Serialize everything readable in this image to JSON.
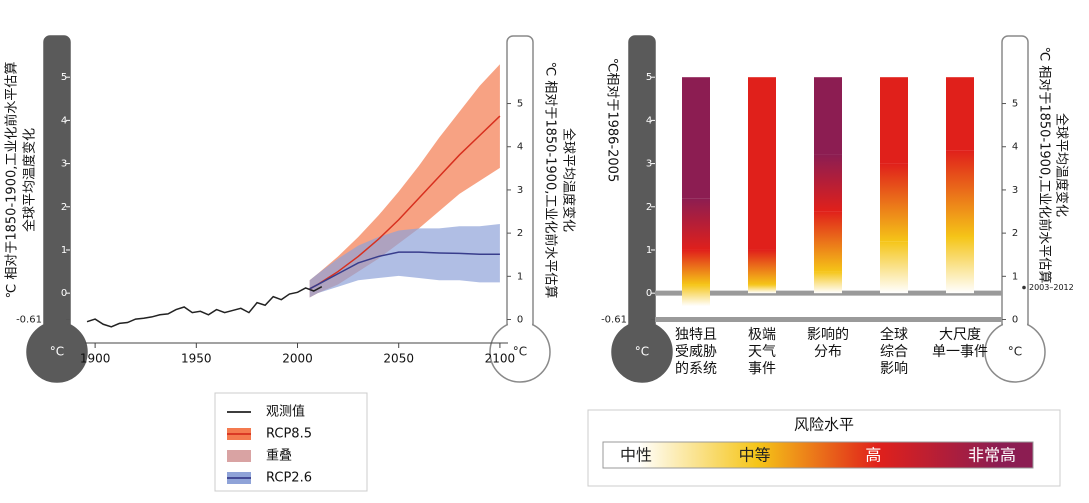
{
  "chart_data": [
    {
      "type": "line",
      "unit": "°C",
      "y_title": [
        "℃ 相对于1850-1900,工业化前水平估算",
        "全球平均温度变化"
      ],
      "y2_title": [
        "℃ 相对于1850-1900,工业化前水平估算",
        "全球平均温度变化"
      ],
      "xlim": [
        1895,
        2104
      ],
      "xticks": [
        1900,
        1950,
        2000,
        2050,
        2100
      ],
      "ylim": [
        -1.2,
        6.0
      ],
      "yticks": [
        -0.61,
        0,
        1,
        2,
        3,
        4,
        5
      ],
      "y2lim": [
        -0.59,
        6.61
      ],
      "y2ticks": [
        0,
        1,
        2,
        3,
        4,
        5
      ],
      "series": [
        {
          "name": "观测值",
          "color": "#222222",
          "x": [
            1896,
            1900,
            1904,
            1908,
            1912,
            1916,
            1920,
            1924,
            1928,
            1932,
            1936,
            1940,
            1944,
            1948,
            1952,
            1956,
            1960,
            1964,
            1968,
            1972,
            1976,
            1980,
            1984,
            1988,
            1992,
            1996,
            2000,
            2004,
            2008,
            2012
          ],
          "values": [
            -0.66,
            -0.6,
            -0.72,
            -0.78,
            -0.7,
            -0.68,
            -0.6,
            -0.58,
            -0.55,
            -0.5,
            -0.48,
            -0.38,
            -0.32,
            -0.45,
            -0.42,
            -0.5,
            -0.38,
            -0.45,
            -0.4,
            -0.35,
            -0.45,
            -0.22,
            -0.28,
            -0.08,
            -0.15,
            -0.02,
            0.02,
            0.12,
            0.05,
            0.15
          ]
        },
        {
          "name": "RCP8.5",
          "color": "#d7301f",
          "band_color": "#f47a4f",
          "x": [
            2006,
            2010,
            2020,
            2030,
            2040,
            2050,
            2060,
            2070,
            2080,
            2090,
            2100
          ],
          "values": [
            0.1,
            0.2,
            0.5,
            0.85,
            1.25,
            1.7,
            2.2,
            2.7,
            3.2,
            3.65,
            4.1
          ],
          "low": [
            -0.1,
            0.0,
            0.2,
            0.5,
            0.8,
            1.15,
            1.5,
            1.9,
            2.3,
            2.6,
            2.9
          ],
          "high": [
            0.3,
            0.45,
            0.85,
            1.3,
            1.8,
            2.35,
            2.95,
            3.6,
            4.2,
            4.8,
            5.3
          ]
        },
        {
          "name": "RCP2.6",
          "color": "#383d8c",
          "band_color": "#8fa3d8",
          "x": [
            2006,
            2010,
            2020,
            2030,
            2040,
            2050,
            2060,
            2070,
            2080,
            2090,
            2100
          ],
          "values": [
            0.1,
            0.2,
            0.45,
            0.7,
            0.85,
            0.95,
            0.95,
            0.93,
            0.92,
            0.9,
            0.9
          ],
          "low": [
            -0.1,
            0.0,
            0.15,
            0.3,
            0.35,
            0.4,
            0.35,
            0.3,
            0.3,
            0.25,
            0.25
          ],
          "high": [
            0.3,
            0.45,
            0.8,
            1.1,
            1.3,
            1.45,
            1.5,
            1.5,
            1.55,
            1.55,
            1.6
          ]
        }
      ],
      "overlap": {
        "name": "重叠",
        "color": "#d9a3a3"
      }
    },
    {
      "type": "risk-bar",
      "unit": "°C",
      "y_title": "℃相对于1986-2005",
      "y2_title": [
        "℃ 相对于1850-1900,工业化前水平估算",
        "全球平均温度变化"
      ],
      "ylim": [
        -1.2,
        6.0
      ],
      "yticks": [
        -0.61,
        0,
        1,
        2,
        3,
        4,
        5
      ],
      "y2lim": [
        -0.59,
        6.61
      ],
      "y2ticks": [
        0,
        1,
        2,
        3,
        4,
        5
      ],
      "reference_lines": [
        0,
        -0.61
      ],
      "annotation": {
        "text": "2003–2012",
        "value": 0.74
      },
      "categories": [
        [
          "独特且",
          "受威胁",
          "的系统"
        ],
        [
          "极端",
          "天气",
          "事件"
        ],
        [
          "影响的",
          "分布"
        ],
        [
          "全球",
          "综合",
          "影响"
        ],
        [
          "大尺度",
          "单一事件"
        ]
      ],
      "top": 5,
      "legend_title": "风险水平",
      "series": [
        {
          "name": "中性",
          "color": "#ffffff",
          "values": [
            -0.3,
            0,
            0,
            0,
            0
          ]
        },
        {
          "name": "中等",
          "color": "#f5c518",
          "values": [
            0.2,
            0.2,
            0.5,
            1.2,
            1.3
          ]
        },
        {
          "name": "高",
          "color": "#e0201b",
          "values": [
            1.0,
            1.0,
            1.9,
            3.0,
            3.3
          ]
        },
        {
          "name": "非常高",
          "color": "#8c1d52",
          "values": [
            2.2,
            null,
            3.2,
            null,
            null
          ]
        }
      ]
    }
  ]
}
